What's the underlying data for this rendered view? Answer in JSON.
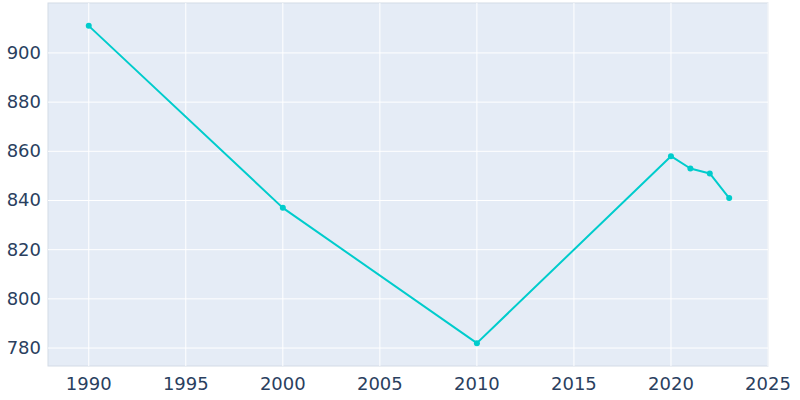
{
  "chart_data": {
    "type": "line",
    "x": [
      1990,
      2000,
      2010,
      2020,
      2021,
      2022,
      2023
    ],
    "values": [
      911,
      837,
      782,
      858,
      853,
      851,
      841
    ],
    "color": "#00cccc",
    "marker": "circle",
    "xlim": [
      1987.9,
      2025
    ],
    "xticks": [
      1990,
      1995,
      2000,
      2005,
      2010,
      2015,
      2020,
      2025
    ],
    "ylim": [
      772.7,
      920.3
    ],
    "yticks": [
      780,
      800,
      820,
      840,
      860,
      880,
      900
    ],
    "grid": true
  }
}
